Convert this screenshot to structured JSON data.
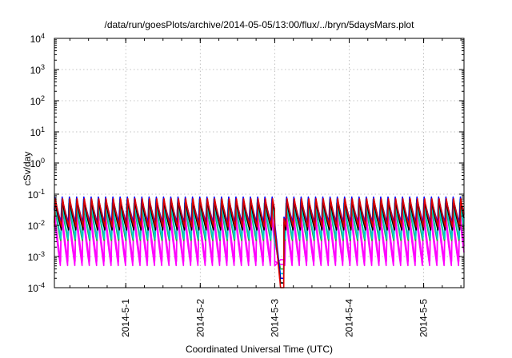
{
  "chart_data": {
    "type": "line",
    "title": "/data/run/goesPlots/archive/2014-05-05/13:00/flux/../bryn/5daysMars.plot",
    "xlabel": "Coordinated Universal Time (UTC)",
    "ylabel": "cSv/day",
    "yscale": "log",
    "ylim": [
      0.0001,
      10000
    ],
    "y_ticks": [
      {
        "base": "10",
        "exp": "4",
        "value": 10000
      },
      {
        "base": "10",
        "exp": "3",
        "value": 1000
      },
      {
        "base": "10",
        "exp": "2",
        "value": 100
      },
      {
        "base": "10",
        "exp": "1",
        "value": 10
      },
      {
        "base": "10",
        "exp": "0",
        "value": 1
      },
      {
        "base": "10",
        "exp": "-1",
        "value": 0.1
      },
      {
        "base": "10",
        "exp": "-2",
        "value": 0.01
      },
      {
        "base": "10",
        "exp": "-3",
        "value": 0.001
      },
      {
        "base": "10",
        "exp": "-4",
        "value": 0.0001
      }
    ],
    "xlim": [
      "2014-04-30 01:00",
      "2014-05-05 13:00"
    ],
    "x_ticks": [
      {
        "label": "2014-5-1",
        "date": "2014-05-01"
      },
      {
        "label": "2014-5-2",
        "date": "2014-05-02"
      },
      {
        "label": "2014-5-3",
        "date": "2014-05-03"
      },
      {
        "label": "2014-5-4",
        "date": "2014-05-04"
      },
      {
        "label": "2014-5-5",
        "date": "2014-05-05"
      }
    ],
    "grid": true,
    "legend": "none",
    "pattern": "sawtooth, approx. 2 h 20 min period; sharp rise followed by decay",
    "gap": {
      "start": "2014-05-03 00:00",
      "end": "2014-05-03 03:00",
      "min_value": 0.0001
    },
    "series": [
      {
        "color": "#dd0000",
        "peak": 0.08,
        "trough": 0.009
      },
      {
        "color": "#000000",
        "peak": 0.07,
        "trough": 0.007
      },
      {
        "color": "#0000ff",
        "peak": 0.085,
        "trough": 0.012
      },
      {
        "color": "#00cccc",
        "peak": 0.07,
        "trough": 0.0035
      },
      {
        "color": "#33aa33",
        "peak": 0.06,
        "trough": 0.003
      },
      {
        "color": "#ff00ff",
        "peak": 0.045,
        "trough": 0.0007
      },
      {
        "color": "#ff00ff",
        "peak": 0.03,
        "trough": 0.0005
      }
    ]
  }
}
